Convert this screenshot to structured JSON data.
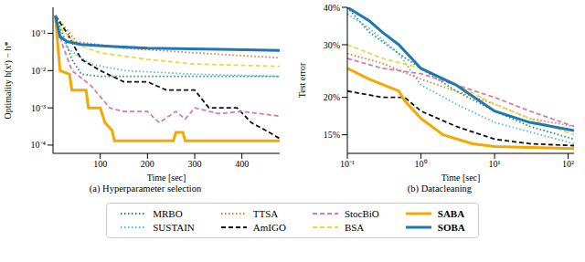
{
  "chart_data": [
    {
      "type": "line",
      "title": "(a) Hyperparameter selection",
      "x_label": "Time [sec]",
      "y_label": "Optimality h(xᵗ) − h*",
      "log": "y",
      "grid": false,
      "legend": "bottom",
      "xlim": [
        0,
        480
      ],
      "xticks": [
        100,
        200,
        300,
        400
      ],
      "ylim": [
        6e-05,
        0.5
      ],
      "yticks": [
        {
          "value": 0.0001,
          "label": "10⁻⁴"
        },
        {
          "value": 0.001,
          "label": "10⁻³"
        },
        {
          "value": 0.01,
          "label": "10⁻²"
        },
        {
          "value": 0.1,
          "label": "10⁻¹"
        }
      ],
      "series": [
        {
          "name": "MRBO",
          "color": "#1a9a5c",
          "line_style": "dotted",
          "x": [
            5,
            20,
            40,
            60,
            100,
            480
          ],
          "values": [
            0.3,
            0.1,
            0.02,
            0.008,
            0.007,
            0.007
          ]
        },
        {
          "name": "SUSTAIN",
          "color": "#5bb5e6",
          "line_style": "dotted",
          "x": [
            5,
            30,
            80,
            150,
            300,
            480
          ],
          "values": [
            0.2,
            0.04,
            0.015,
            0.01,
            0.008,
            0.007
          ]
        },
        {
          "name": "TTSA",
          "color": "#e07b39",
          "line_style": "dotted",
          "x": [
            5,
            50,
            150,
            300,
            480
          ],
          "values": [
            0.3,
            0.06,
            0.04,
            0.03,
            0.022
          ]
        },
        {
          "name": "AmIGO",
          "color": "#111111",
          "line_style": "dashed",
          "x": [
            5,
            30,
            60,
            100,
            150,
            200,
            240,
            300,
            330,
            390,
            420,
            450,
            480
          ],
          "values": [
            0.3,
            0.1,
            0.02,
            0.01,
            0.005,
            0.005,
            0.003,
            0.003,
            0.001,
            0.001,
            0.0004,
            0.00025,
            0.00015
          ]
        },
        {
          "name": "StocBiO",
          "color": "#d67bb0",
          "line_style": "dashed",
          "x": [
            5,
            20,
            40,
            80,
            100,
            120,
            150,
            200,
            225,
            260,
            280,
            300,
            350,
            400,
            480
          ],
          "values": [
            0.3,
            0.05,
            0.01,
            0.004,
            0.002,
            0.001,
            0.0008,
            0.0008,
            0.0004,
            0.0008,
            0.0005,
            0.001,
            0.0007,
            0.0008,
            0.0006
          ]
        },
        {
          "name": "BSA",
          "color": "#e8d94a",
          "line_style": "dashed",
          "x": [
            5,
            50,
            100,
            200,
            300,
            480
          ],
          "values": [
            0.2,
            0.05,
            0.03,
            0.02,
            0.015,
            0.013
          ]
        },
        {
          "name": "SABA",
          "color": "#f5a800",
          "line_style": "solid",
          "x": [
            5,
            10,
            15,
            35,
            40,
            70,
            75,
            100,
            110,
            125,
            130,
            255,
            260,
            275,
            280,
            480
          ],
          "values": [
            0.3,
            0.05,
            0.01,
            0.008,
            0.003,
            0.003,
            0.001,
            0.001,
            0.0004,
            0.00025,
            0.00013,
            0.00013,
            0.00022,
            0.00022,
            0.00013,
            0.00013
          ]
        },
        {
          "name": "SOBA",
          "color": "#1f77b4",
          "line_style": "solid",
          "x": [
            5,
            15,
            30,
            60,
            120,
            200,
            480
          ],
          "values": [
            0.3,
            0.08,
            0.06,
            0.05,
            0.045,
            0.04,
            0.035
          ]
        }
      ]
    },
    {
      "type": "line",
      "title": "(b) Datacleaning",
      "x_label": "Time [sec]",
      "y_label": "Test error",
      "log": true,
      "grid": false,
      "xlim": [
        0.1,
        120
      ],
      "xticks": [
        {
          "value": 0.1,
          "label": "10⁻¹"
        },
        {
          "value": 1,
          "label": "10⁰"
        },
        {
          "value": 10,
          "label": "10¹"
        },
        {
          "value": 100,
          "label": "10²"
        }
      ],
      "ylim": [
        13,
        40
      ],
      "yticks": [
        {
          "value": 15,
          "label": "15%"
        },
        {
          "value": 20,
          "label": "20%"
        },
        {
          "value": 30,
          "label": "30%"
        },
        {
          "value": 40,
          "label": "40%"
        }
      ],
      "series": [
        {
          "name": "MRBO",
          "color": "#1a9a5c",
          "line_style": "dotted",
          "x": [
            0.1,
            0.2,
            0.5,
            1,
            3,
            10,
            30,
            120
          ],
          "values": [
            40,
            33,
            28,
            25,
            21,
            18,
            16,
            14.5
          ]
        },
        {
          "name": "SUSTAIN",
          "color": "#5bb5e6",
          "line_style": "dotted",
          "x": [
            0.1,
            0.2,
            0.5,
            1,
            3,
            10,
            120
          ],
          "values": [
            38,
            34,
            28,
            22,
            19,
            16.5,
            14
          ]
        },
        {
          "name": "TTSA",
          "color": "#e07b39",
          "line_style": "dotted",
          "x": [
            0.1,
            0.3,
            1,
            3,
            10,
            30,
            120
          ],
          "values": [
            28,
            26,
            23,
            21,
            19,
            17,
            16
          ]
        },
        {
          "name": "AmIGO",
          "color": "#111111",
          "line_style": "dashed",
          "x": [
            0.1,
            0.3,
            0.6,
            1,
            3,
            10,
            30,
            120
          ],
          "values": [
            21,
            20,
            20,
            18,
            16,
            14.5,
            14,
            13.8
          ]
        },
        {
          "name": "StocBiO",
          "color": "#d67bb0",
          "line_style": "dashed",
          "x": [
            0.1,
            0.3,
            1,
            3,
            10,
            30,
            120
          ],
          "values": [
            27,
            25,
            24,
            22,
            20,
            18,
            16
          ]
        },
        {
          "name": "BSA",
          "color": "#e8d94a",
          "line_style": "dashed",
          "x": [
            0.1,
            0.3,
            1,
            3,
            10,
            30,
            120
          ],
          "values": [
            30,
            27,
            25,
            22,
            19,
            17,
            15
          ]
        },
        {
          "name": "SABA",
          "color": "#f5a800",
          "line_style": "solid",
          "x": [
            0.1,
            0.2,
            0.5,
            0.6,
            1,
            2,
            5,
            10,
            120
          ],
          "values": [
            25,
            23,
            21,
            19.5,
            17,
            15,
            14,
            13.7,
            13.5
          ]
        },
        {
          "name": "SOBA",
          "color": "#1f77b4",
          "line_style": "solid",
          "x": [
            0.1,
            0.2,
            0.3,
            0.5,
            1,
            3,
            10,
            30,
            120
          ],
          "values": [
            40,
            36,
            33,
            30,
            25,
            22,
            18,
            16.5,
            15.5
          ]
        }
      ]
    }
  ]
}
